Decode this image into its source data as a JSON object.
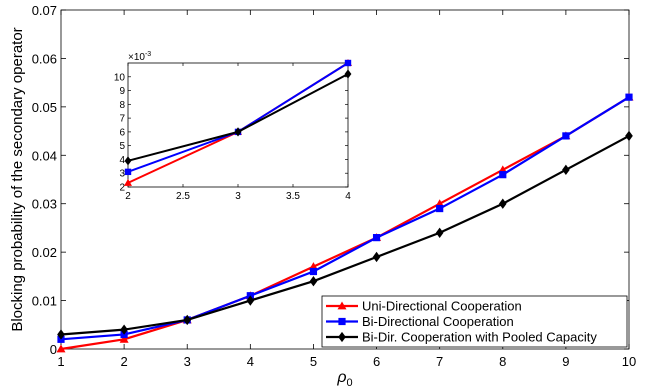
{
  "chart_data": [
    {
      "type": "line",
      "title": "",
      "xlabel": "ρ",
      "xlabel_subscript": "0",
      "ylabel": "Blocking probability of the secondary operator",
      "x": [
        1,
        2,
        3,
        4,
        5,
        6,
        7,
        8,
        9,
        10
      ],
      "xlim": [
        1,
        10
      ],
      "ylim": [
        0,
        0.07
      ],
      "x_ticks": [
        "1",
        "2",
        "3",
        "4",
        "5",
        "6",
        "7",
        "8",
        "9",
        "10"
      ],
      "y_ticks": [
        "0",
        "0.01",
        "0.02",
        "0.03",
        "0.04",
        "0.05",
        "0.06",
        "0.07"
      ],
      "y_tick_values": [
        0,
        0.01,
        0.02,
        0.03,
        0.04,
        0.05,
        0.06,
        0.07
      ],
      "grid": false,
      "legend_position": "bottom-right",
      "series": [
        {
          "name": "Uni-Directional Cooperation",
          "color": "#ff0000",
          "marker": "triangle",
          "values": [
            0.0,
            0.002,
            0.006,
            0.011,
            0.017,
            0.023,
            0.03,
            0.037,
            0.044,
            0.052
          ]
        },
        {
          "name": "Bi-Directional Cooperation",
          "color": "#0000ff",
          "marker": "square",
          "values": [
            0.002,
            0.003,
            0.006,
            0.011,
            0.016,
            0.023,
            0.029,
            0.036,
            0.044,
            0.052
          ]
        },
        {
          "name": "Bi-Dir. Cooperation with Pooled Capacity",
          "color": "#000000",
          "marker": "diamond",
          "values": [
            0.003,
            0.004,
            0.006,
            0.01,
            0.014,
            0.019,
            0.024,
            0.03,
            0.037,
            0.044
          ]
        }
      ]
    },
    {
      "type": "line",
      "title": "",
      "exponent_label": "×10",
      "exponent_power": "-3",
      "x": [
        2,
        3,
        4
      ],
      "xlim": [
        2,
        4
      ],
      "ylim": [
        2,
        11
      ],
      "x_ticks": [
        "2",
        "2.5",
        "3",
        "3.5",
        "4"
      ],
      "x_tick_values": [
        2,
        2.5,
        3,
        3.5,
        4
      ],
      "y_ticks": [
        "2",
        "3",
        "4",
        "5",
        "6",
        "7",
        "8",
        "9",
        "10"
      ],
      "y_tick_values": [
        2,
        3,
        4,
        5,
        6,
        7,
        8,
        9,
        10
      ],
      "series": [
        {
          "color": "#ff0000",
          "marker": "triangle",
          "values": [
            2.3,
            6.0,
            11.0
          ]
        },
        {
          "color": "#0000ff",
          "marker": "square",
          "values": [
            3.1,
            6.0,
            11.0
          ]
        },
        {
          "color": "#000000",
          "marker": "diamond",
          "values": [
            3.9,
            6.0,
            10.2
          ]
        }
      ]
    }
  ]
}
